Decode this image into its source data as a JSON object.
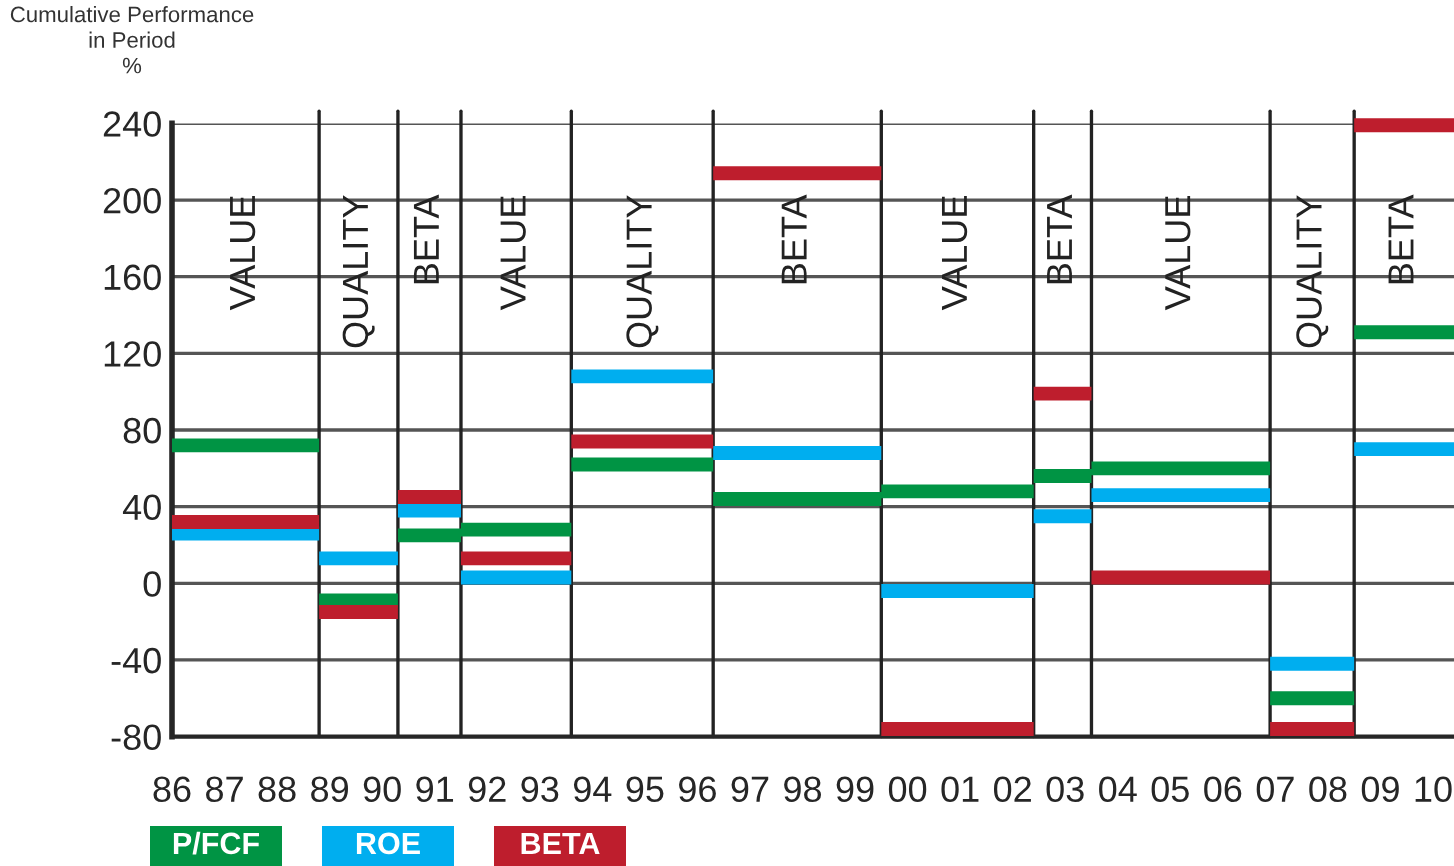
{
  "chart_data": {
    "type": "line",
    "ylabel": "Cumulative Performance\nin Period\n%",
    "xlim": [
      1986,
      2010.4
    ],
    "xticks": [
      {
        "value": 1986,
        "label": "86"
      },
      {
        "value": 1987,
        "label": "87"
      },
      {
        "value": 1988,
        "label": "88"
      },
      {
        "value": 1989,
        "label": "89"
      },
      {
        "value": 1990,
        "label": "90"
      },
      {
        "value": 1991,
        "label": "91"
      },
      {
        "value": 1992,
        "label": "92"
      },
      {
        "value": 1993,
        "label": "93"
      },
      {
        "value": 1994,
        "label": "94"
      },
      {
        "value": 1995,
        "label": "95"
      },
      {
        "value": 1996,
        "label": "96"
      },
      {
        "value": 1997,
        "label": "97"
      },
      {
        "value": 1998,
        "label": "98"
      },
      {
        "value": 1999,
        "label": "99"
      },
      {
        "value": 2000,
        "label": "00"
      },
      {
        "value": 2001,
        "label": "01"
      },
      {
        "value": 2002,
        "label": "02"
      },
      {
        "value": 2003,
        "label": "03"
      },
      {
        "value": 2004,
        "label": "04"
      },
      {
        "value": 2005,
        "label": "05"
      },
      {
        "value": 2006,
        "label": "06"
      },
      {
        "value": 2007,
        "label": "07"
      },
      {
        "value": 2008,
        "label": "08"
      },
      {
        "value": 2009,
        "label": "09"
      },
      {
        "value": 2010,
        "label": "10"
      }
    ],
    "ylim": [
      -80,
      240
    ],
    "yticks": [
      -80,
      -40,
      0,
      40,
      80,
      120,
      160,
      200,
      240
    ],
    "grid": "y",
    "legend": "bottom left",
    "marker": "none",
    "line_style": "solid",
    "ref_lines": [
      {
        "axis": "x",
        "value": 1988.8
      },
      {
        "axis": "x",
        "value": 1990.3
      },
      {
        "axis": "x",
        "value": 1991.5
      },
      {
        "axis": "x",
        "value": 1993.6
      },
      {
        "axis": "x",
        "value": 1996.3
      },
      {
        "axis": "x",
        "value": 1999.5
      },
      {
        "axis": "x",
        "value": 2002.4
      },
      {
        "axis": "x",
        "value": 2003.5
      },
      {
        "axis": "x",
        "value": 2006.9
      },
      {
        "axis": "x",
        "value": 2008.5
      }
    ],
    "annotations": [
      "VALUE",
      "QUALITY",
      "BETA",
      "VALUE",
      "QUALITY",
      "BETA",
      "VALUE",
      "BETA",
      "VALUE",
      "QUALITY",
      "BETA"
    ],
    "series": [
      {
        "name": "P/FCF",
        "color": "#009444",
        "x": [
          1986,
          1988.8,
          null,
          1988.8,
          1990.3,
          null,
          1990.3,
          1991.5,
          null,
          1991.5,
          1993.6,
          null,
          1993.6,
          1996.3,
          null,
          1996.3,
          1999.5,
          null,
          1999.5,
          2002.4,
          null,
          2002.4,
          2003.5,
          null,
          2003.5,
          2006.9,
          null,
          2006.9,
          2008.5,
          null,
          2008.5,
          2010.4
        ],
        "values": [
          72,
          72,
          null,
          -9,
          -9,
          null,
          25,
          25,
          null,
          28,
          28,
          null,
          62,
          62,
          null,
          44,
          44,
          null,
          48,
          48,
          null,
          56,
          56,
          null,
          60,
          60,
          null,
          -60,
          -60,
          null,
          131,
          131
        ]
      },
      {
        "name": "ROE",
        "color": "#00aeef",
        "x": [
          1986,
          1988.8,
          null,
          1988.8,
          1990.3,
          null,
          1990.3,
          1991.5,
          null,
          1991.5,
          1993.6,
          null,
          1993.6,
          1996.3,
          null,
          1996.3,
          1999.5,
          null,
          1999.5,
          2002.4,
          null,
          2002.4,
          2003.5,
          null,
          2003.5,
          2006.9,
          null,
          2006.9,
          2008.5,
          null,
          2008.5,
          2010.4
        ],
        "values": [
          26,
          26,
          null,
          13,
          13,
          null,
          38,
          38,
          null,
          3,
          3,
          null,
          108,
          108,
          null,
          68,
          68,
          null,
          -4,
          -4,
          null,
          35,
          35,
          null,
          46,
          46,
          null,
          -42,
          -42,
          null,
          70,
          70
        ]
      },
      {
        "name": "BETA",
        "color": "#be1e2d",
        "x": [
          1986,
          1988.8,
          null,
          1988.8,
          1990.3,
          null,
          1990.3,
          1991.5,
          null,
          1991.5,
          1993.6,
          null,
          1993.6,
          1996.3,
          null,
          1996.3,
          1999.5,
          null,
          1999.5,
          2002.4,
          null,
          2002.4,
          2003.5,
          null,
          2003.5,
          2006.9,
          null,
          2006.9,
          2008.5,
          null,
          2008.5,
          2010.4
        ],
        "values": [
          32,
          32,
          null,
          -15,
          -15,
          null,
          45,
          45,
          null,
          13,
          13,
          null,
          74,
          74,
          null,
          214,
          214,
          null,
          -76,
          -76,
          null,
          99,
          99,
          null,
          3,
          3,
          null,
          -76,
          -76,
          null,
          239,
          239
        ]
      }
    ]
  }
}
